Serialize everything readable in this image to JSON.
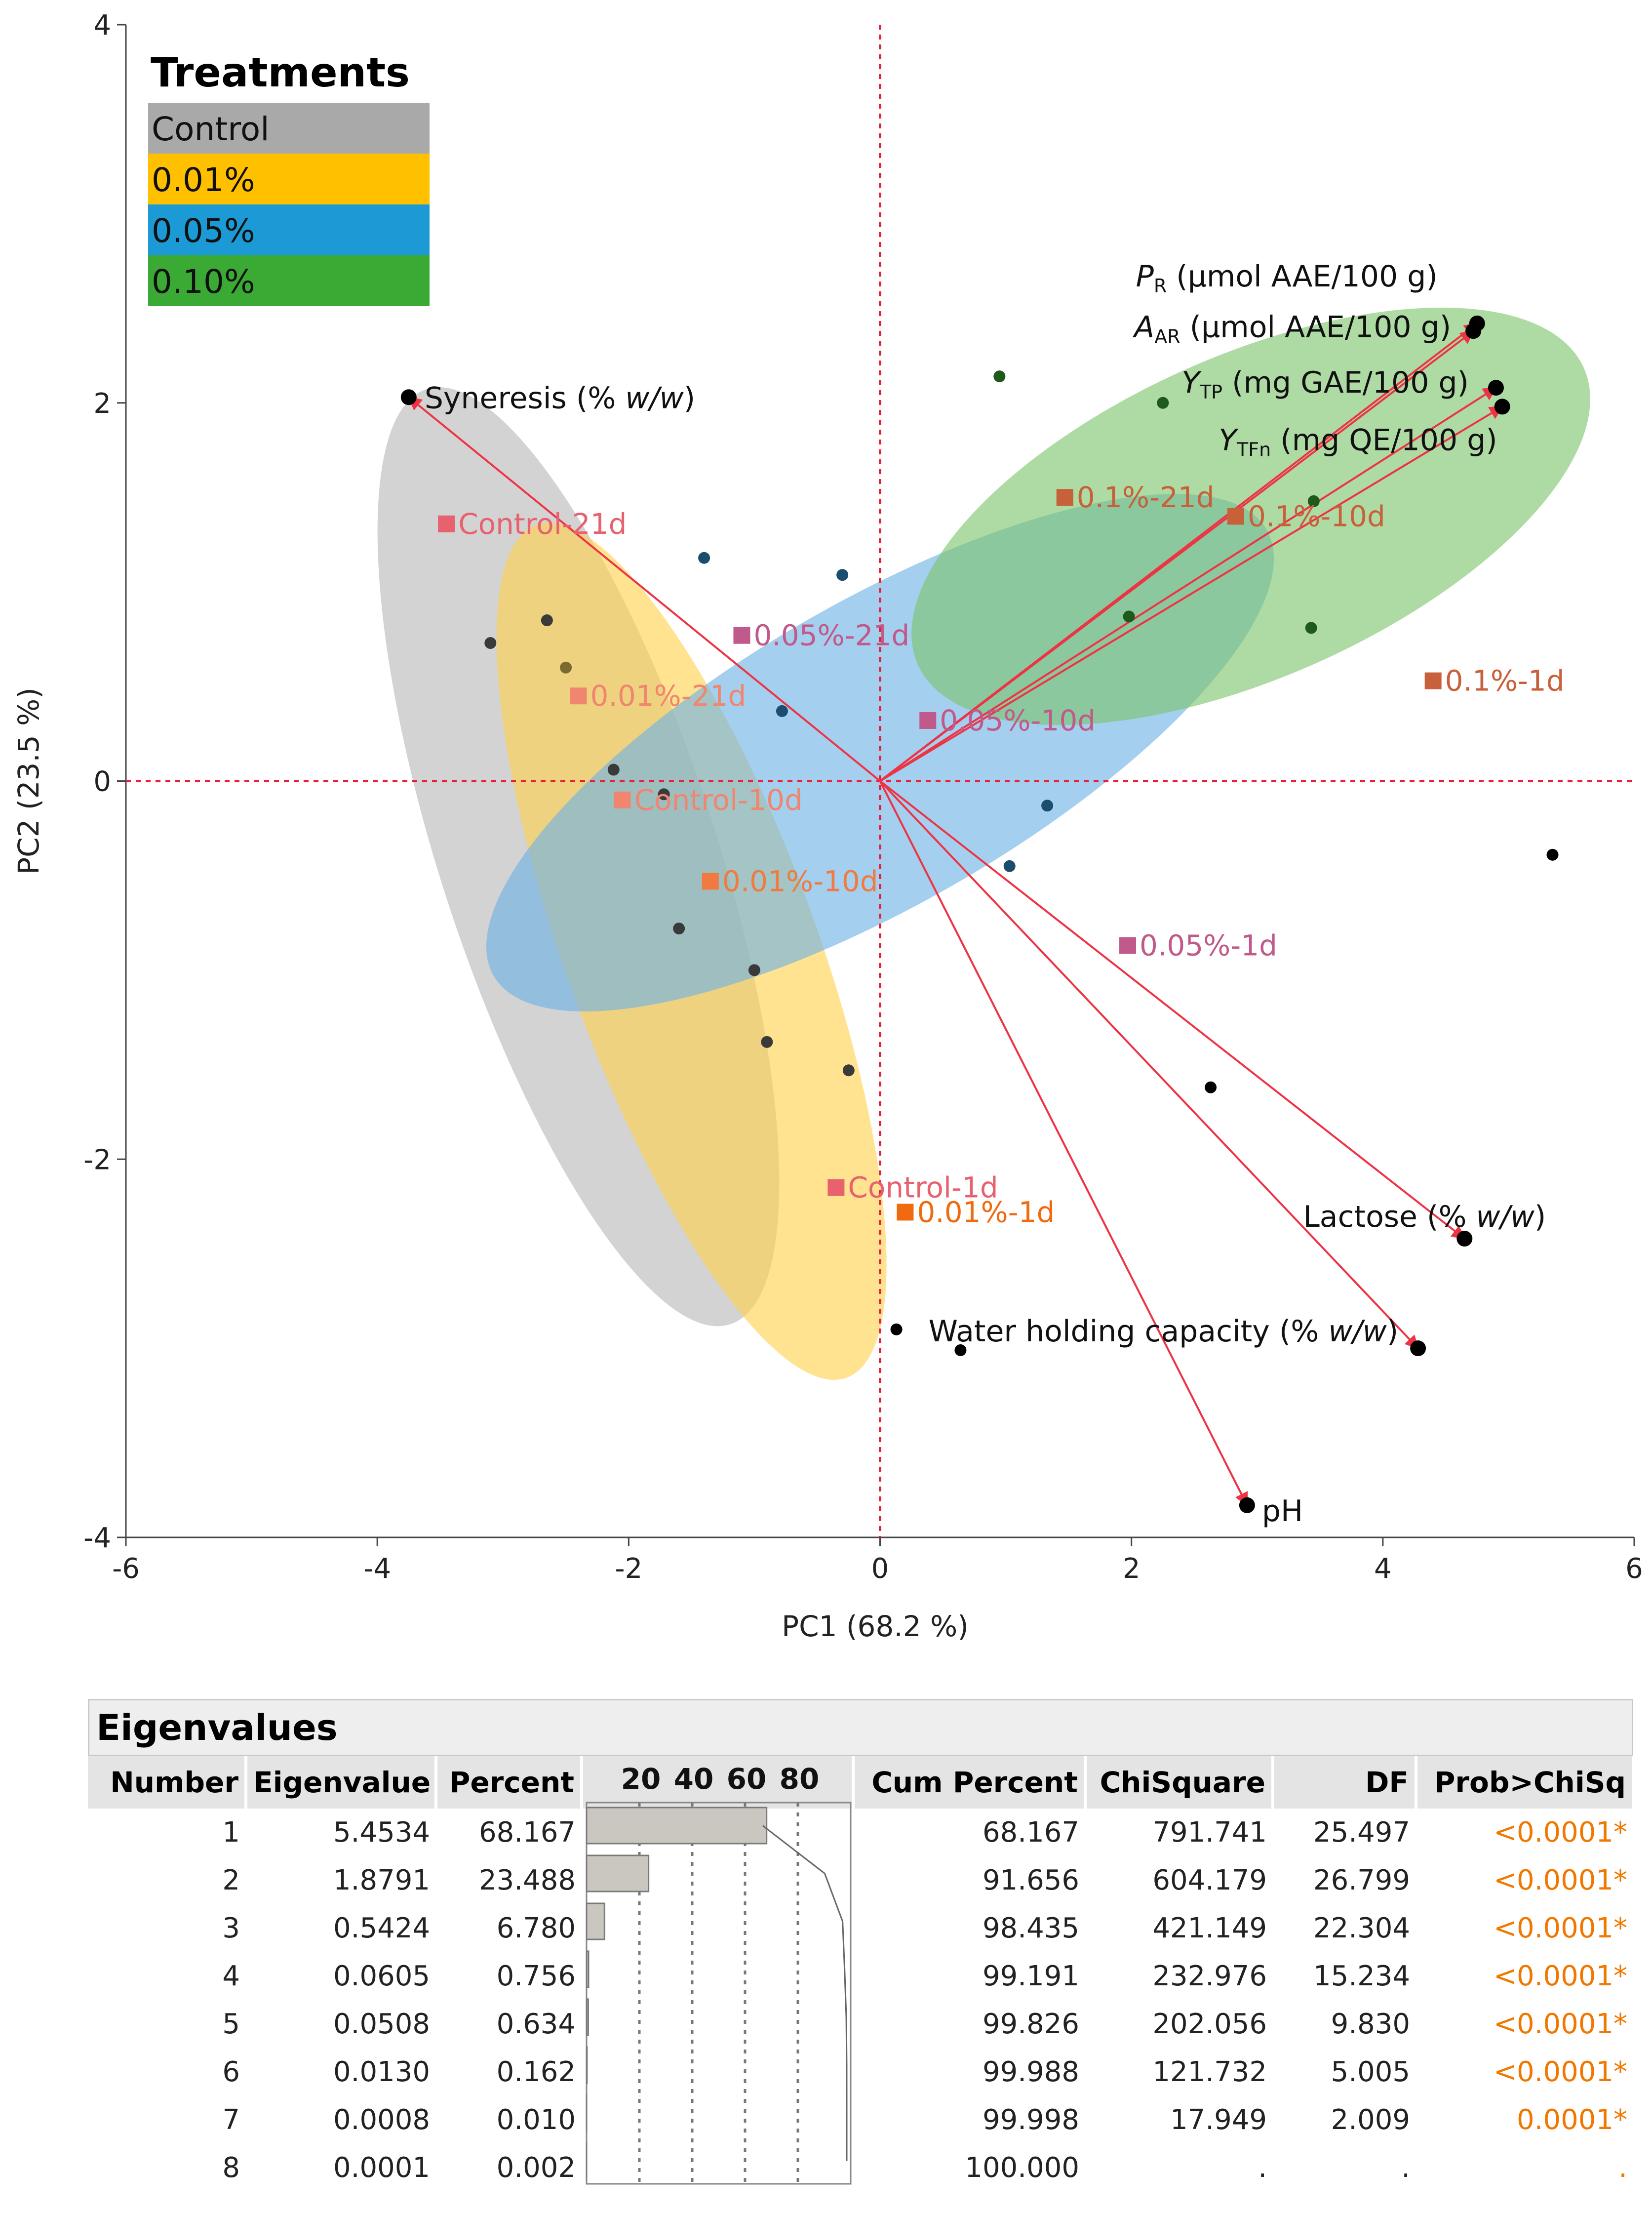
{
  "chart_data": {
    "type": "scatter",
    "title": "",
    "xlabel": "PC1  (68.2 %)",
    "ylabel": "PC2  (23.5 %)",
    "xlim": [
      -6,
      6
    ],
    "ylim": [
      -4,
      4
    ],
    "x_ticks": [
      -6,
      -4,
      -2,
      0,
      2,
      4,
      6
    ],
    "y_ticks": [
      -4,
      -2,
      0,
      2,
      4
    ],
    "legend": {
      "title": "Treatments",
      "entries": [
        {
          "label": "Control",
          "color": "#a9a9a9"
        },
        {
          "label": "0.01%",
          "color": "#ffc000"
        },
        {
          "label": "0.05%",
          "color": "#1b9ad6"
        },
        {
          "label": "0.10%",
          "color": "#3aaa35"
        }
      ]
    },
    "ellipses": [
      {
        "group": "Control",
        "color": "#b8b8b8",
        "cx": -2.4,
        "cy": -0.4,
        "rx": 1.1,
        "ry": 2.6,
        "angle_deg": -18
      },
      {
        "group": "0.01%",
        "color": "#ffd24d",
        "cx": -1.5,
        "cy": -0.9,
        "rx": 1.0,
        "ry": 2.4,
        "angle_deg": -20
      },
      {
        "group": "0.05%",
        "color": "#6cb2e5",
        "cx": 0.0,
        "cy": 0.15,
        "rx": 3.55,
        "ry": 0.8,
        "angle_deg": -30
      },
      {
        "group": "0.10%",
        "color": "#7cc36b",
        "cx": 2.95,
        "cy": 1.4,
        "rx": 2.9,
        "ry": 0.85,
        "angle_deg": -24
      }
    ],
    "observations": [
      {
        "group": "Control",
        "color": "#3a3a3a",
        "points": [
          [
            -3.1,
            0.73
          ],
          [
            -2.65,
            0.85
          ],
          [
            -2.12,
            0.06
          ],
          [
            -1.72,
            -0.07
          ],
          [
            -1.6,
            -0.78
          ],
          [
            -1.0,
            -1.0
          ],
          [
            -0.9,
            -1.38
          ],
          [
            -0.25,
            -1.53
          ]
        ]
      },
      {
        "group": "0.01%",
        "color": "#7a6a30",
        "points": [
          [
            -2.5,
            0.6
          ]
        ]
      },
      {
        "group": "0.05%",
        "color": "#1a4d6e",
        "points": [
          [
            -1.4,
            1.18
          ],
          [
            -0.3,
            1.09
          ],
          [
            -0.78,
            0.37
          ],
          [
            1.33,
            -0.13
          ],
          [
            1.03,
            -0.45
          ]
        ]
      },
      {
        "group": "0.10%",
        "color": "#1e5a1c",
        "points": [
          [
            0.95,
            2.14
          ],
          [
            2.25,
            2.0
          ],
          [
            3.45,
            1.48
          ],
          [
            1.98,
            0.87
          ],
          [
            3.43,
            0.81
          ]
        ]
      },
      {
        "group": "Other",
        "color": "#000000",
        "points": [
          [
            5.35,
            -0.39
          ],
          [
            2.63,
            -1.62
          ],
          [
            0.64,
            -3.01
          ],
          [
            0.13,
            -2.9
          ]
        ]
      }
    ],
    "group_means": [
      {
        "label": "Control-21d",
        "x": -3.45,
        "y": 1.36,
        "color": "#e8616e"
      },
      {
        "label": "Control-10d",
        "x": -2.05,
        "y": -0.1,
        "color": "#f08570"
      },
      {
        "label": "Control-1d",
        "x": -0.35,
        "y": -2.15,
        "color": "#e8616e"
      },
      {
        "label": "0.01%-21d",
        "x": -2.4,
        "y": 0.45,
        "color": "#f08570"
      },
      {
        "label": "0.01%-10d",
        "x": -1.35,
        "y": -0.53,
        "color": "#f07a40"
      },
      {
        "label": "0.01%-1d",
        "x": 0.2,
        "y": -2.28,
        "color": "#f06a10"
      },
      {
        "label": "0.05%-21d",
        "x": -1.1,
        "y": 0.77,
        "color": "#c05a8a"
      },
      {
        "label": "0.05%-10d",
        "x": 0.38,
        "y": 0.32,
        "color": "#c05a8a"
      },
      {
        "label": "0.05%-1d",
        "x": 1.97,
        "y": -0.87,
        "color": "#c05a8a"
      },
      {
        "label": "0.1%-21d",
        "x": 1.47,
        "y": 1.5,
        "color": "#c8603a"
      },
      {
        "label": "0.1%-10d",
        "x": 2.83,
        "y": 1.4,
        "color": "#c8603a"
      },
      {
        "label": "0.1%-1d",
        "x": 4.4,
        "y": 0.53,
        "color": "#c8603a"
      }
    ],
    "loadings": [
      {
        "name": "syneresis",
        "x": -3.75,
        "y": 2.03,
        "label": "Syneresis (% ",
        "label_italic": "w/w",
        "label_end": ")",
        "color": "#ee3344"
      },
      {
        "name": "pr",
        "x": 4.75,
        "y": 2.42,
        "label_main": "P",
        "label_sub": "R",
        "label_rest": " (μmol AAE/100 g)",
        "color": "#ee3344"
      },
      {
        "name": "aar",
        "x": 4.72,
        "y": 2.38,
        "label_main": "A",
        "label_sub": "AR",
        "label_rest": " (μmol AAE/100 g)",
        "color": "#ee3344"
      },
      {
        "name": "ytp",
        "x": 4.9,
        "y": 2.08,
        "label_main": "Y",
        "label_sub": "TP",
        "label_rest": " (mg GAE/100 g)",
        "color": "#ee3344"
      },
      {
        "name": "ytfn",
        "x": 4.95,
        "y": 1.98,
        "label_main": "Y",
        "label_sub": "TFn",
        "label_rest": " (mg QE/100 g)",
        "color": "#ee3344"
      },
      {
        "name": "lactose",
        "x": 4.65,
        "y": -2.42,
        "label": "Lactose (% ",
        "label_italic": "w/w",
        "label_end": ")",
        "color": "#ee3344"
      },
      {
        "name": "whc",
        "x": 4.28,
        "y": -3.0,
        "label": "Water holding capacity (% ",
        "label_italic": "w/w",
        "label_end": ")",
        "color": "#ee3344"
      },
      {
        "name": "ph",
        "x": 2.92,
        "y": -3.83,
        "label": "pH",
        "color": "#ee3344"
      }
    ]
  },
  "eigen": {
    "title": "Eigenvalues",
    "headers": {
      "number": "Number",
      "eigenvalue": "Eigenvalue",
      "percent": "Percent",
      "bar_ticks": [
        "20",
        "40",
        "60",
        "80"
      ],
      "cum_percent": "Cum Percent",
      "chisquare": "ChiSquare",
      "df": "DF",
      "prob": "Prob>ChiSq"
    },
    "rows": [
      {
        "number": "1",
        "eigenvalue": "5.4534",
        "percent": "68.167",
        "percent_value": 68.167,
        "cum_percent": "68.167",
        "chisquare": "791.741",
        "df": "25.497",
        "prob": "<0.0001*"
      },
      {
        "number": "2",
        "eigenvalue": "1.8791",
        "percent": "23.488",
        "percent_value": 23.488,
        "cum_percent": "91.656",
        "chisquare": "604.179",
        "df": "26.799",
        "prob": "<0.0001*"
      },
      {
        "number": "3",
        "eigenvalue": "0.5424",
        "percent": "6.780",
        "percent_value": 6.78,
        "cum_percent": "98.435",
        "chisquare": "421.149",
        "df": "22.304",
        "prob": "<0.0001*"
      },
      {
        "number": "4",
        "eigenvalue": "0.0605",
        "percent": "0.756",
        "percent_value": 0.756,
        "cum_percent": "99.191",
        "chisquare": "232.976",
        "df": "15.234",
        "prob": "<0.0001*"
      },
      {
        "number": "5",
        "eigenvalue": "0.0508",
        "percent": "0.634",
        "percent_value": 0.634,
        "cum_percent": "99.826",
        "chisquare": "202.056",
        "df": "9.830",
        "prob": "<0.0001*"
      },
      {
        "number": "6",
        "eigenvalue": "0.0130",
        "percent": "0.162",
        "percent_value": 0.162,
        "cum_percent": "99.988",
        "chisquare": "121.732",
        "df": "5.005",
        "prob": "<0.0001*"
      },
      {
        "number": "7",
        "eigenvalue": "0.0008",
        "percent": "0.010",
        "percent_value": 0.01,
        "cum_percent": "99.998",
        "chisquare": "17.949",
        "df": "2.009",
        "prob": "0.0001*"
      },
      {
        "number": "8",
        "eigenvalue": "0.0001",
        "percent": "0.002",
        "percent_value": 0.002,
        "cum_percent": "100.000",
        "chisquare": ".",
        "df": ".",
        "prob": "."
      }
    ]
  }
}
